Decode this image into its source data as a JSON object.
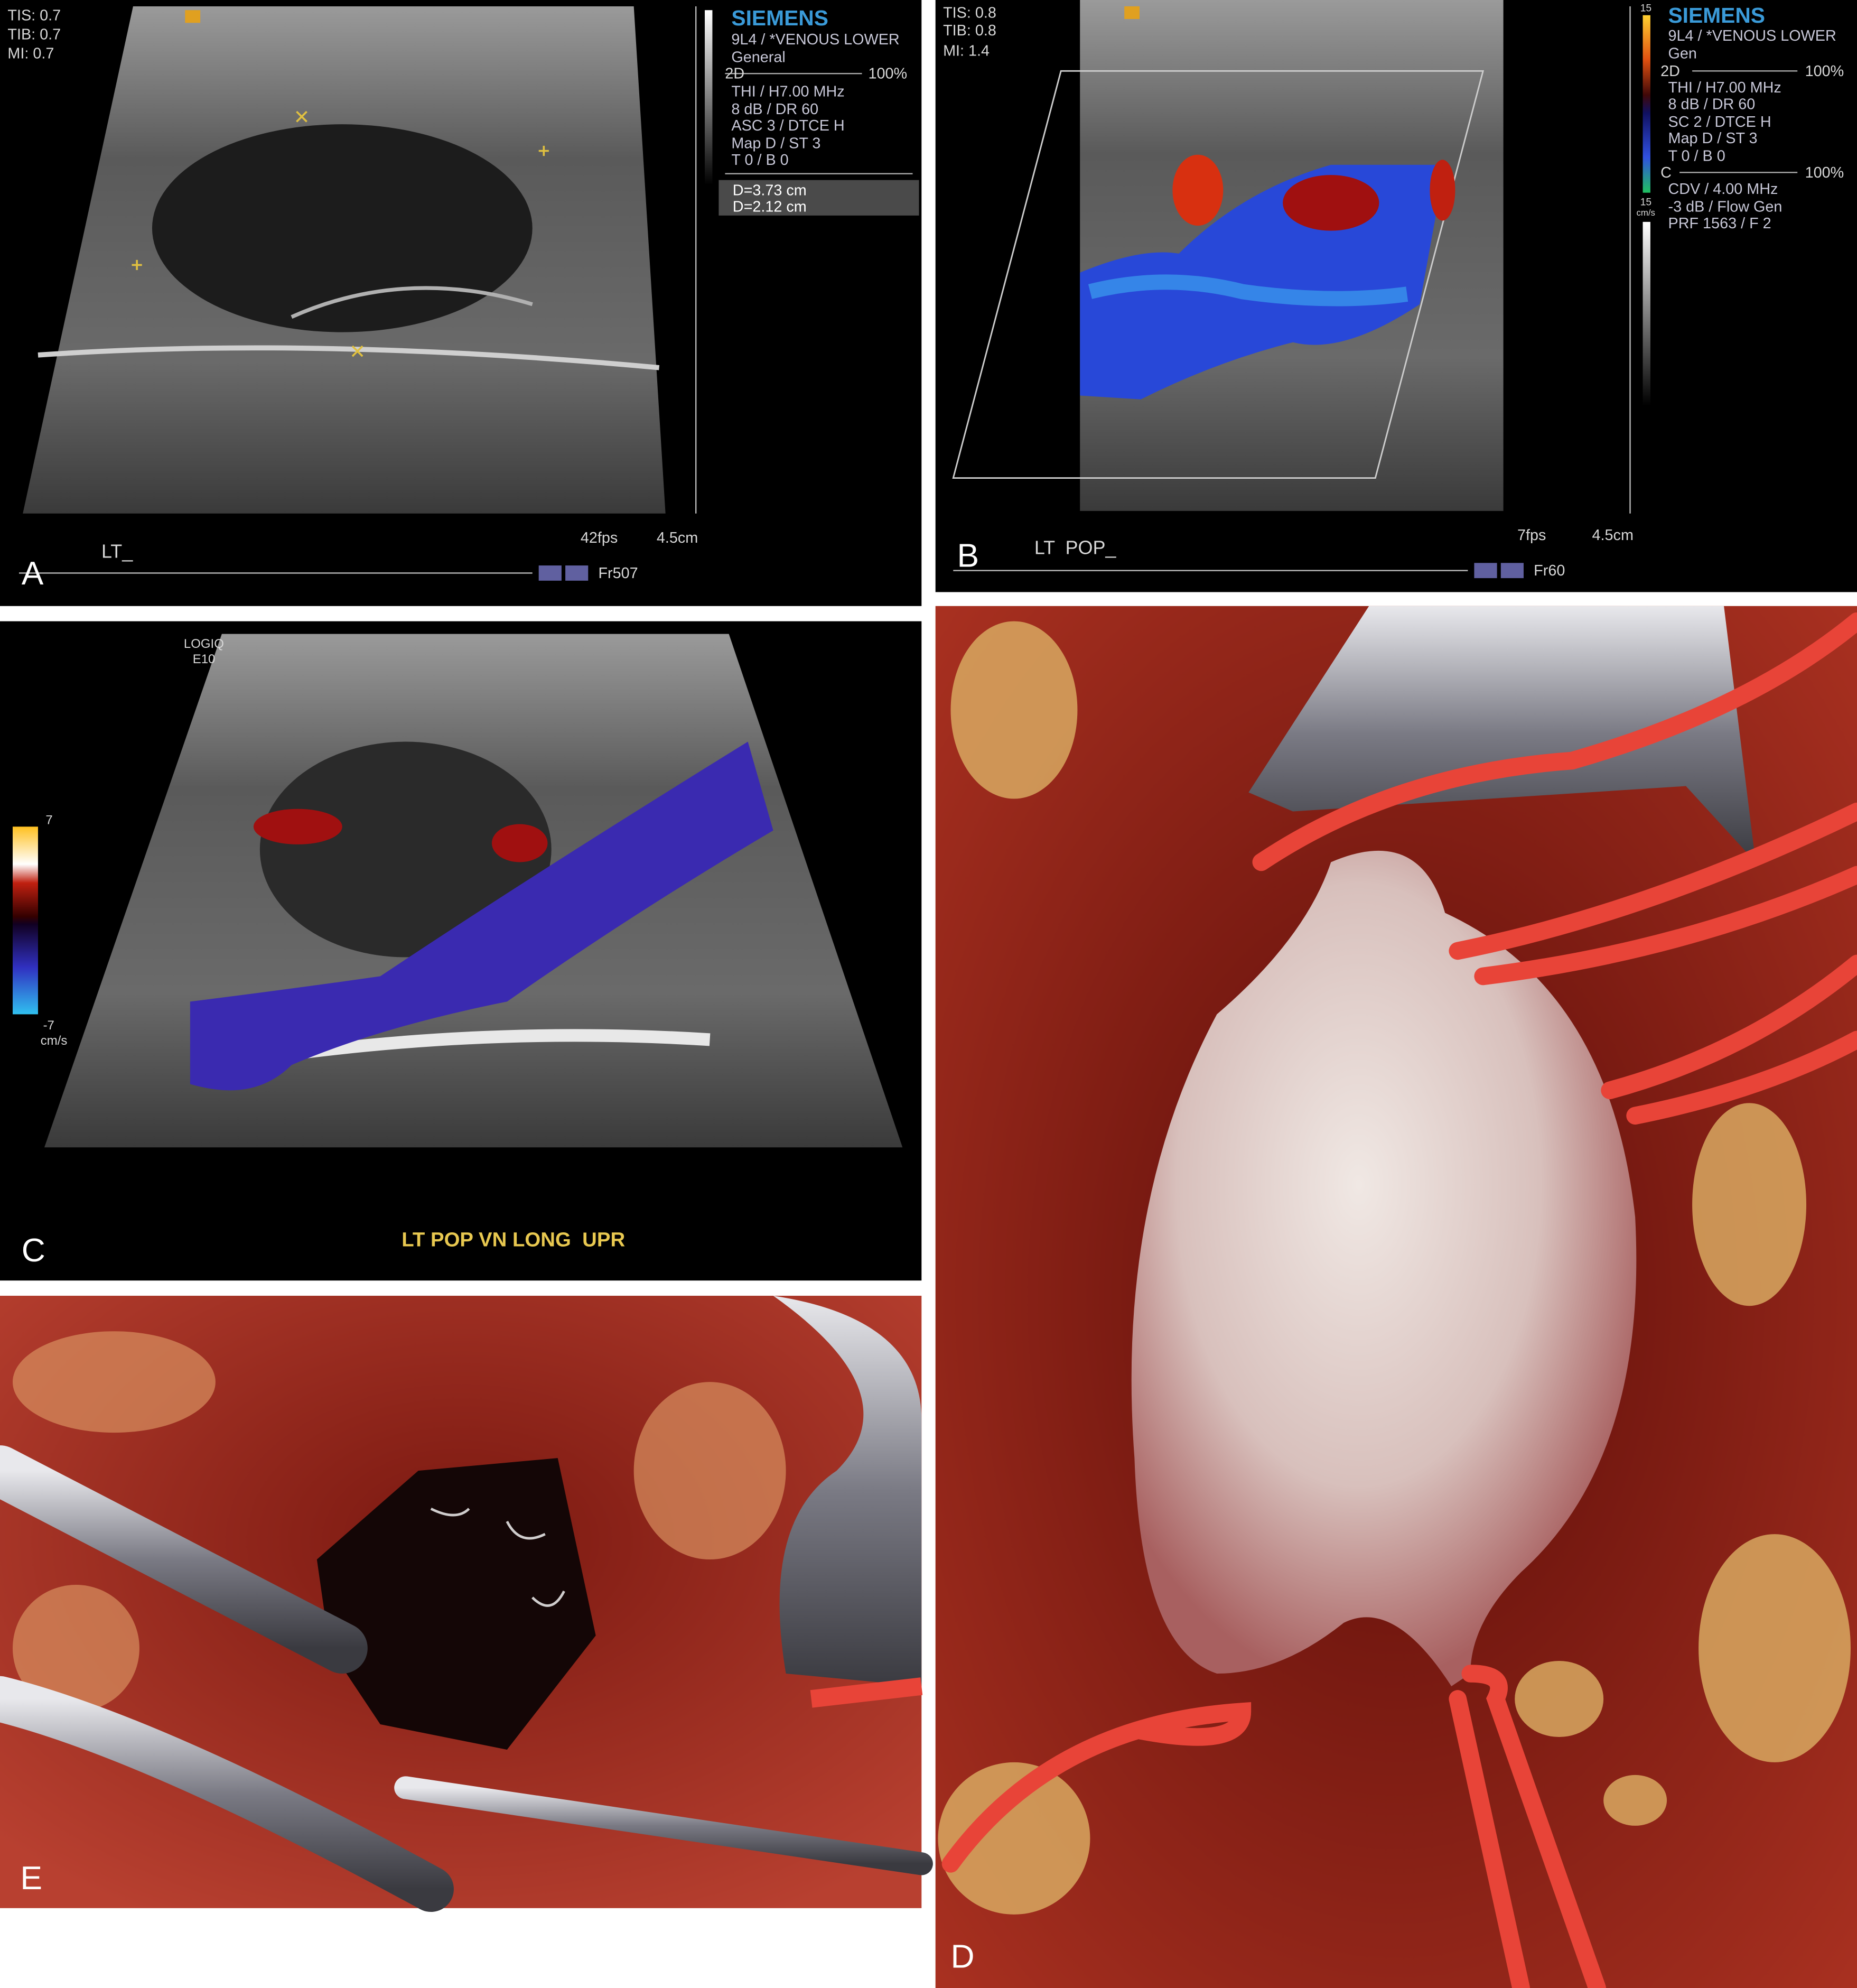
{
  "panels": [
    {
      "label": "A",
      "overlay": [
        "TIS: 0.7",
        "TIB: 0.7",
        "MI: 0.7",
        "SIEMENS",
        "9L4 / *VENOUS LOWER",
        "General",
        "2D",
        "100%",
        "THI / H7.00 MHz",
        "8 dB / DR 60",
        "ASC 3 / DTCE H",
        "Map D / ST 3",
        "T 0 / B 0",
        "D=3.73 cm",
        "D=2.12 cm",
        "LT_",
        "42fps",
        "4.5cm",
        "Fr507"
      ]
    },
    {
      "label": "B",
      "overlay": [
        "TIS: 0.8",
        "TIB: 0.8",
        "MI: 1.4",
        "SIEMENS",
        "9L4 / *VENOUS LOWER",
        "Gen",
        "2D",
        "100%",
        "THI / H7.00 MHz",
        "8 dB / DR 60",
        "SC 2 / DTCE H",
        "Map D / ST 3",
        "T 0 / B 0",
        "C",
        "100%",
        "CDV / 4.00 MHz",
        "-3 dB / Flow Gen",
        "PRF 1563 / F 2",
        "15",
        "15",
        "cm/s",
        "LT  POP_",
        "7fps",
        "4.5cm",
        "Fr60"
      ]
    },
    {
      "label": "C",
      "overlay": [
        "LOGIQ",
        "E10",
        "7",
        "-7",
        "cm/s",
        "LT POP VN LONG  UPR"
      ]
    },
    {
      "label": "D"
    },
    {
      "label": "E"
    }
  ]
}
